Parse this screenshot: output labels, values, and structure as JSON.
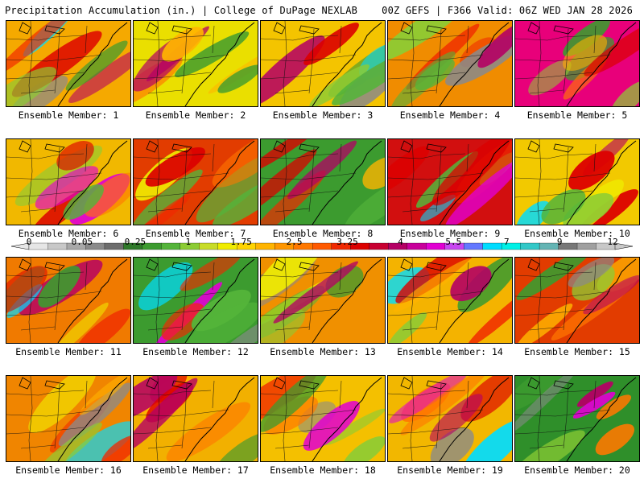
{
  "header": {
    "left": "Precipitation Accumulation (in.) | College of DuPage NEXLAB",
    "right": "00Z GEFS | F366 Valid: 06Z WED JAN 28 2026"
  },
  "panels": [
    {
      "label": "Ensemble Member: 1",
      "base": "#f5a900"
    },
    {
      "label": "Ensemble Member: 2",
      "base": "#eadf00"
    },
    {
      "label": "Ensemble Member: 3",
      "base": "#f4c400"
    },
    {
      "label": "Ensemble Member: 4",
      "base": "#f08c00"
    },
    {
      "label": "Ensemble Member: 5",
      "base": "#e8007a"
    },
    {
      "label": "Ensemble Member: 6",
      "base": "#f1b800"
    },
    {
      "label": "Ensemble Member: 7",
      "base": "#e23c00"
    },
    {
      "label": "Ensemble Member: 8",
      "base": "#3c9b2f"
    },
    {
      "label": "Ensemble Member: 9",
      "base": "#d20f0f"
    },
    {
      "label": "Ensemble Member: 10",
      "base": "#f2c900"
    },
    {
      "label": "Ensemble Member: 11",
      "base": "#f07a00"
    },
    {
      "label": "Ensemble Member: 12",
      "base": "#3c9b2f"
    },
    {
      "label": "Ensemble Member: 13",
      "base": "#f09000"
    },
    {
      "label": "Ensemble Member: 14",
      "base": "#f4b300"
    },
    {
      "label": "Ensemble Member: 15",
      "base": "#e23c00"
    },
    {
      "label": "Ensemble Member: 16",
      "base": "#f08500"
    },
    {
      "label": "Ensemble Member: 17",
      "base": "#f2b000"
    },
    {
      "label": "Ensemble Member: 18",
      "base": "#f4c000"
    },
    {
      "label": "Ensemble Member: 19",
      "base": "#f2b700"
    },
    {
      "label": "Ensemble Member: 20",
      "base": "#2f8f2a"
    }
  ],
  "colorbar": {
    "labels": [
      "0",
      "0.05",
      "0.25",
      "1",
      "1.75",
      "2.5",
      "3.25",
      "4",
      "5.5",
      "7",
      "9",
      "12"
    ],
    "colors": [
      "#e6e6e6",
      "#c8c8c8",
      "#a8a8a8",
      "#8a8a8a",
      "#6d6d6d",
      "#2f7a2a",
      "#3c9b2f",
      "#54b43a",
      "#8ccc34",
      "#c8dc28",
      "#f0ec00",
      "#ffd400",
      "#ffb400",
      "#ff9600",
      "#ff7800",
      "#ff5a00",
      "#f02800",
      "#dc0000",
      "#c80032",
      "#b40064",
      "#c8009b",
      "#e100d2",
      "#c846f0",
      "#6478ff",
      "#00dcff",
      "#00f0e6",
      "#32c8c8",
      "#64b4b4",
      "#787878",
      "#a0a0a0",
      "#c8c8c8"
    ]
  }
}
